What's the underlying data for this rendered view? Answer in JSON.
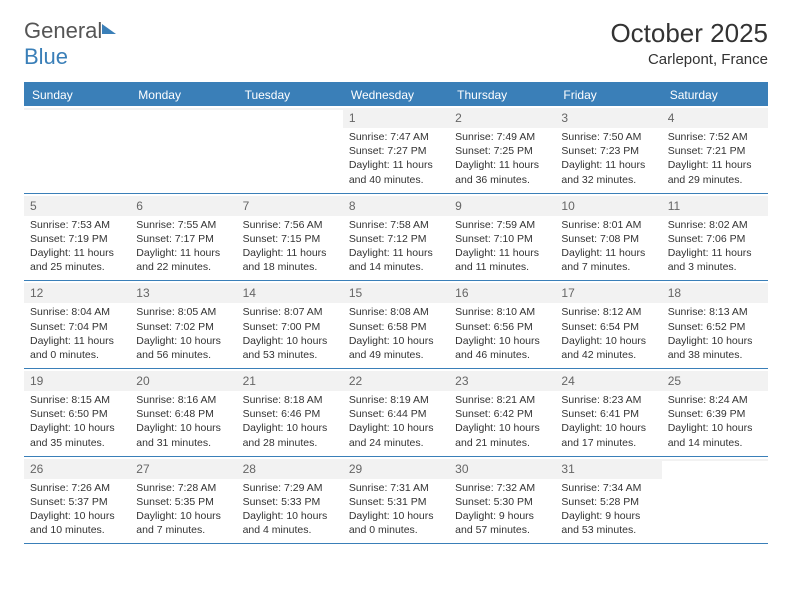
{
  "logo": {
    "part1": "General",
    "part2": "Blue"
  },
  "title": {
    "month_year": "October 2025",
    "location": "Carlepont, France"
  },
  "weekdays": [
    "Sunday",
    "Monday",
    "Tuesday",
    "Wednesday",
    "Thursday",
    "Friday",
    "Saturday"
  ],
  "colors": {
    "accent": "#3a7fb8",
    "header_bg": "#3a7fb8",
    "daynum_bg": "#f2f2f2",
    "text": "#333333"
  },
  "weeks": [
    [
      {
        "n": "",
        "sunrise": "",
        "sunset": "",
        "daylight": ""
      },
      {
        "n": "",
        "sunrise": "",
        "sunset": "",
        "daylight": ""
      },
      {
        "n": "",
        "sunrise": "",
        "sunset": "",
        "daylight": ""
      },
      {
        "n": "1",
        "sunrise": "Sunrise: 7:47 AM",
        "sunset": "Sunset: 7:27 PM",
        "daylight": "Daylight: 11 hours and 40 minutes."
      },
      {
        "n": "2",
        "sunrise": "Sunrise: 7:49 AM",
        "sunset": "Sunset: 7:25 PM",
        "daylight": "Daylight: 11 hours and 36 minutes."
      },
      {
        "n": "3",
        "sunrise": "Sunrise: 7:50 AM",
        "sunset": "Sunset: 7:23 PM",
        "daylight": "Daylight: 11 hours and 32 minutes."
      },
      {
        "n": "4",
        "sunrise": "Sunrise: 7:52 AM",
        "sunset": "Sunset: 7:21 PM",
        "daylight": "Daylight: 11 hours and 29 minutes."
      }
    ],
    [
      {
        "n": "5",
        "sunrise": "Sunrise: 7:53 AM",
        "sunset": "Sunset: 7:19 PM",
        "daylight": "Daylight: 11 hours and 25 minutes."
      },
      {
        "n": "6",
        "sunrise": "Sunrise: 7:55 AM",
        "sunset": "Sunset: 7:17 PM",
        "daylight": "Daylight: 11 hours and 22 minutes."
      },
      {
        "n": "7",
        "sunrise": "Sunrise: 7:56 AM",
        "sunset": "Sunset: 7:15 PM",
        "daylight": "Daylight: 11 hours and 18 minutes."
      },
      {
        "n": "8",
        "sunrise": "Sunrise: 7:58 AM",
        "sunset": "Sunset: 7:12 PM",
        "daylight": "Daylight: 11 hours and 14 minutes."
      },
      {
        "n": "9",
        "sunrise": "Sunrise: 7:59 AM",
        "sunset": "Sunset: 7:10 PM",
        "daylight": "Daylight: 11 hours and 11 minutes."
      },
      {
        "n": "10",
        "sunrise": "Sunrise: 8:01 AM",
        "sunset": "Sunset: 7:08 PM",
        "daylight": "Daylight: 11 hours and 7 minutes."
      },
      {
        "n": "11",
        "sunrise": "Sunrise: 8:02 AM",
        "sunset": "Sunset: 7:06 PM",
        "daylight": "Daylight: 11 hours and 3 minutes."
      }
    ],
    [
      {
        "n": "12",
        "sunrise": "Sunrise: 8:04 AM",
        "sunset": "Sunset: 7:04 PM",
        "daylight": "Daylight: 11 hours and 0 minutes."
      },
      {
        "n": "13",
        "sunrise": "Sunrise: 8:05 AM",
        "sunset": "Sunset: 7:02 PM",
        "daylight": "Daylight: 10 hours and 56 minutes."
      },
      {
        "n": "14",
        "sunrise": "Sunrise: 8:07 AM",
        "sunset": "Sunset: 7:00 PM",
        "daylight": "Daylight: 10 hours and 53 minutes."
      },
      {
        "n": "15",
        "sunrise": "Sunrise: 8:08 AM",
        "sunset": "Sunset: 6:58 PM",
        "daylight": "Daylight: 10 hours and 49 minutes."
      },
      {
        "n": "16",
        "sunrise": "Sunrise: 8:10 AM",
        "sunset": "Sunset: 6:56 PM",
        "daylight": "Daylight: 10 hours and 46 minutes."
      },
      {
        "n": "17",
        "sunrise": "Sunrise: 8:12 AM",
        "sunset": "Sunset: 6:54 PM",
        "daylight": "Daylight: 10 hours and 42 minutes."
      },
      {
        "n": "18",
        "sunrise": "Sunrise: 8:13 AM",
        "sunset": "Sunset: 6:52 PM",
        "daylight": "Daylight: 10 hours and 38 minutes."
      }
    ],
    [
      {
        "n": "19",
        "sunrise": "Sunrise: 8:15 AM",
        "sunset": "Sunset: 6:50 PM",
        "daylight": "Daylight: 10 hours and 35 minutes."
      },
      {
        "n": "20",
        "sunrise": "Sunrise: 8:16 AM",
        "sunset": "Sunset: 6:48 PM",
        "daylight": "Daylight: 10 hours and 31 minutes."
      },
      {
        "n": "21",
        "sunrise": "Sunrise: 8:18 AM",
        "sunset": "Sunset: 6:46 PM",
        "daylight": "Daylight: 10 hours and 28 minutes."
      },
      {
        "n": "22",
        "sunrise": "Sunrise: 8:19 AM",
        "sunset": "Sunset: 6:44 PM",
        "daylight": "Daylight: 10 hours and 24 minutes."
      },
      {
        "n": "23",
        "sunrise": "Sunrise: 8:21 AM",
        "sunset": "Sunset: 6:42 PM",
        "daylight": "Daylight: 10 hours and 21 minutes."
      },
      {
        "n": "24",
        "sunrise": "Sunrise: 8:23 AM",
        "sunset": "Sunset: 6:41 PM",
        "daylight": "Daylight: 10 hours and 17 minutes."
      },
      {
        "n": "25",
        "sunrise": "Sunrise: 8:24 AM",
        "sunset": "Sunset: 6:39 PM",
        "daylight": "Daylight: 10 hours and 14 minutes."
      }
    ],
    [
      {
        "n": "26",
        "sunrise": "Sunrise: 7:26 AM",
        "sunset": "Sunset: 5:37 PM",
        "daylight": "Daylight: 10 hours and 10 minutes."
      },
      {
        "n": "27",
        "sunrise": "Sunrise: 7:28 AM",
        "sunset": "Sunset: 5:35 PM",
        "daylight": "Daylight: 10 hours and 7 minutes."
      },
      {
        "n": "28",
        "sunrise": "Sunrise: 7:29 AM",
        "sunset": "Sunset: 5:33 PM",
        "daylight": "Daylight: 10 hours and 4 minutes."
      },
      {
        "n": "29",
        "sunrise": "Sunrise: 7:31 AM",
        "sunset": "Sunset: 5:31 PM",
        "daylight": "Daylight: 10 hours and 0 minutes."
      },
      {
        "n": "30",
        "sunrise": "Sunrise: 7:32 AM",
        "sunset": "Sunset: 5:30 PM",
        "daylight": "Daylight: 9 hours and 57 minutes."
      },
      {
        "n": "31",
        "sunrise": "Sunrise: 7:34 AM",
        "sunset": "Sunset: 5:28 PM",
        "daylight": "Daylight: 9 hours and 53 minutes."
      },
      {
        "n": "",
        "sunrise": "",
        "sunset": "",
        "daylight": ""
      }
    ]
  ]
}
